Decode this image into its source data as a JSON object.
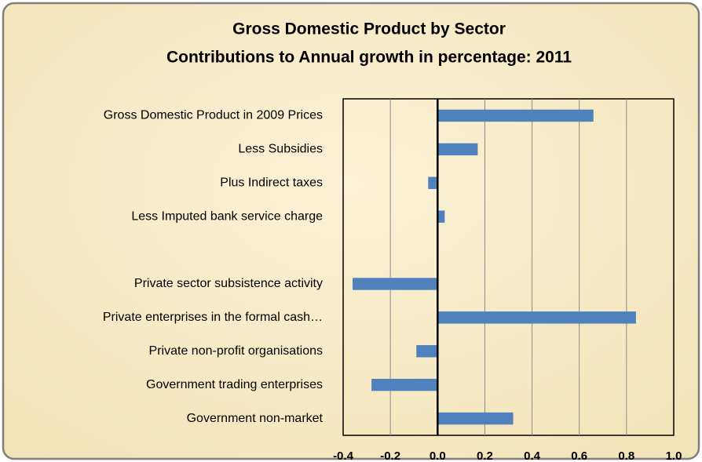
{
  "chart_data": {
    "type": "bar",
    "orientation": "horizontal",
    "title": "Gross Domestic Product by Sector",
    "subtitle": "Contributions to Annual growth in percentage: 2011",
    "categories": [
      "Gross Domestic Product in 2009 Prices",
      "Less Subsidies",
      "Plus Indirect taxes",
      "Less Imputed bank service charge",
      null,
      "Private sector subsistence activity",
      "Private enterprises in the formal cash…",
      "Private non-profit organisations",
      "Government trading enterprises",
      "Government non-market"
    ],
    "values": [
      0.66,
      0.17,
      -0.04,
      0.03,
      null,
      -0.36,
      0.84,
      -0.09,
      -0.28,
      0.32
    ],
    "color": "#4f81bd",
    "xlim": [
      -0.4,
      1.0
    ],
    "xticks": [
      -0.4,
      -0.2,
      {
        "value": 0,
        "label": "0.0"
      },
      0.2,
      0.4,
      0.6,
      0.8,
      {
        "value": 1.0,
        "label": "1.0"
      }
    ],
    "grid": true
  }
}
